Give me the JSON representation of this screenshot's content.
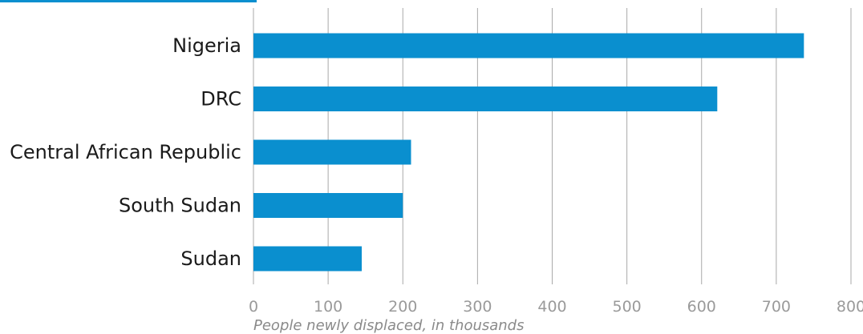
{
  "chart_data": {
    "type": "bar",
    "orientation": "horizontal",
    "categories": [
      "Nigeria",
      "DRC",
      "Central African Republic",
      "South Sudan",
      "Sudan"
    ],
    "values": [
      737,
      621,
      211,
      200,
      145
    ],
    "xlabel": "People newly displaced, in thousands",
    "ylabel": "",
    "xlim": [
      0,
      800
    ],
    "xticks": [
      "0",
      "100",
      "200",
      "300",
      "400",
      "500",
      "600",
      "700",
      "800"
    ],
    "grid": "vertical",
    "colors": {
      "bar": "#0a8fcf",
      "grid": "#a9a9a9",
      "tick_label": "#9a9a9a",
      "category_label": "#1a1a1a",
      "axis_title": "#8a8a8a"
    }
  }
}
